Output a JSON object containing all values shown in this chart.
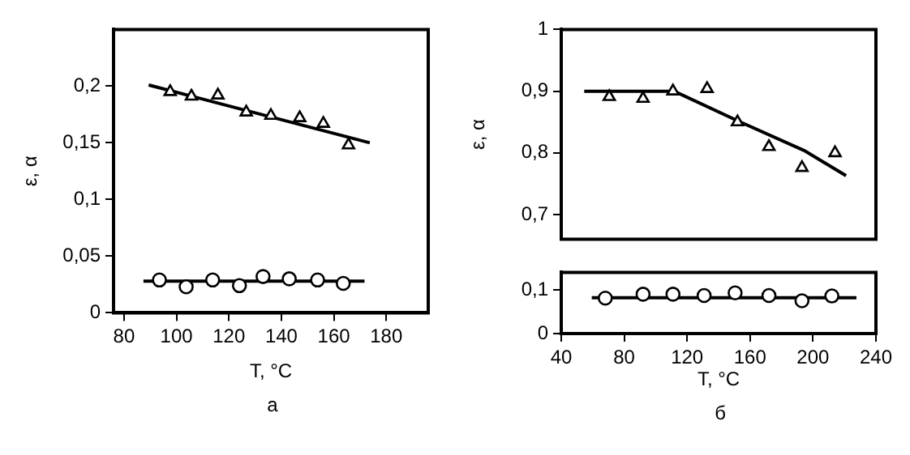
{
  "chart_data": [
    {
      "type": "scatter",
      "xlabel": "T, °C",
      "ylabel": "ε, α",
      "annotations": [
        "а"
      ],
      "grid": false,
      "legend": false,
      "xlim": [
        76,
        196
      ],
      "xticks": [
        80,
        100,
        120,
        140,
        160,
        180
      ],
      "ylim": [
        0,
        0.25
      ],
      "yticks": [
        {
          "value": 0,
          "label": "0"
        },
        {
          "value": 0.05,
          "label": "0,05"
        },
        {
          "value": 0.1,
          "label": "0,1"
        },
        {
          "value": 0.15,
          "label": "0,15"
        },
        {
          "value": 0.2,
          "label": "0,2"
        }
      ],
      "series": [
        {
          "type": "scatter",
          "marker": "triangle",
          "color": "#000000",
          "x": [
            97.6,
            105.7,
            115.8,
            126.6,
            136,
            147,
            156,
            165.6
          ],
          "values": [
            0.195,
            0.191,
            0.192,
            0.177,
            0.174,
            0.172,
            0.167,
            0.148
          ]
        },
        {
          "type": "line",
          "marker": "none",
          "color": "#000000",
          "x": [
            89.4,
            173.7
          ],
          "values": [
            0.201,
            0.15
          ]
        },
        {
          "type": "scatter",
          "marker": "circle",
          "color": "#000000",
          "x": [
            93.5,
            103.7,
            113.8,
            124,
            133,
            143,
            153.8,
            163.6
          ],
          "values": [
            0.029,
            0.023,
            0.029,
            0.024,
            0.032,
            0.03,
            0.029,
            0.026
          ]
        },
        {
          "type": "line",
          "marker": "none",
          "color": "#000000",
          "x": [
            87.4,
            171.7
          ],
          "values": [
            0.028,
            0.028
          ]
        }
      ]
    },
    {
      "type": "scatter",
      "ylabel": "ε, α",
      "grid": false,
      "legend": false,
      "tick_labels": "y",
      "xlim": [
        40,
        240
      ],
      "ylim": [
        0.66,
        1
      ],
      "yticks": [
        {
          "value": 0.7,
          "label": "0,7"
        },
        {
          "value": 0.8,
          "label": "0,8"
        },
        {
          "value": 0.9,
          "label": "0,9"
        },
        {
          "value": 1,
          "label": "1"
        }
      ],
      "series": [
        {
          "type": "scatter",
          "marker": "triangle",
          "color": "#000000",
          "x": [
            70.5,
            92,
            111,
            132.7,
            152,
            172,
            193,
            214
          ],
          "values": [
            0.891,
            0.888,
            0.9,
            0.904,
            0.85,
            0.81,
            0.776,
            0.8
          ]
        },
        {
          "type": "line",
          "marker": "none",
          "color": "#000000",
          "x": [
            54.6,
            111.7,
            153,
            194.3,
            221
          ],
          "values": [
            0.9,
            0.9,
            0.851,
            0.804,
            0.763
          ]
        }
      ]
    },
    {
      "type": "scatter",
      "xlabel": "T, °C",
      "annotations": [
        "б"
      ],
      "grid": false,
      "legend": false,
      "xlim": [
        40,
        240
      ],
      "xticks": [
        40,
        80,
        120,
        160,
        200,
        240
      ],
      "ylim": [
        0,
        0.14
      ],
      "yticks": [
        {
          "value": 0,
          "label": "0"
        },
        {
          "value": 0.1,
          "label": "0,1"
        }
      ],
      "series": [
        {
          "type": "scatter",
          "marker": "circle",
          "color": "#000000",
          "x": [
            68,
            92,
            111,
            130.8,
            150.5,
            172,
            193,
            212
          ],
          "values": [
            0.081,
            0.09,
            0.09,
            0.087,
            0.093,
            0.087,
            0.075,
            0.086
          ]
        },
        {
          "type": "line",
          "marker": "none",
          "color": "#000000",
          "x": [
            59.4,
            227.6
          ],
          "values": [
            0.082,
            0.082
          ]
        }
      ]
    }
  ]
}
